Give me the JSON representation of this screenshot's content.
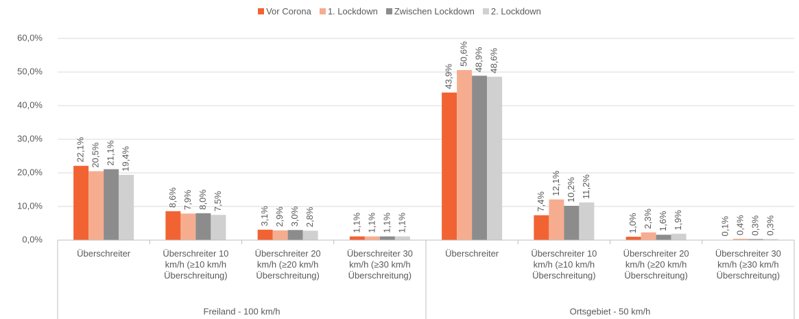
{
  "chart_data": {
    "type": "bar",
    "categories": [
      "Überschreiter",
      "Überschreiter 10 km/h (≥10 km/h Überschreitung)",
      "Überschreiter 20 km/h (≥20 km/h Überschreitung)",
      "Überschreiter 30 km/h (≥30 km/h Überschreitung)",
      "Überschreiter",
      "Überschreiter 10 km/h (≥10 km/h Überschreitung)",
      "Überschreiter 20 km/h (≥20 km/h Überschreitung)",
      "Überschreiter 30 km/h (≥30 km/h Überschreitung)"
    ],
    "category_groups": [
      "Freiland - 100 km/h",
      "Ortsgebiet - 50 km/h"
    ],
    "series": [
      {
        "name": "Vor Corona",
        "color": "#f26334",
        "values": [
          22.1,
          8.6,
          3.1,
          1.1,
          43.9,
          7.4,
          1.0,
          0.1
        ],
        "value_labels": [
          "22,1%",
          "8,6%",
          "3,1%",
          "1,1%",
          "43,9%",
          "7,4%",
          "1,0%",
          "0,1%"
        ]
      },
      {
        "name": "1. Lockdown",
        "color": "#f6ad8f",
        "values": [
          20.5,
          7.9,
          2.9,
          1.1,
          50.6,
          12.1,
          2.3,
          0.4
        ],
        "value_labels": [
          "20,5%",
          "7,9%",
          "2,9%",
          "1,1%",
          "50,6%",
          "12,1%",
          "2,3%",
          "0,4%"
        ]
      },
      {
        "name": "Zwischen Lockdown",
        "color": "#8c8c8c",
        "values": [
          21.1,
          8.0,
          3.0,
          1.1,
          48.9,
          10.2,
          1.6,
          0.3
        ],
        "value_labels": [
          "21,1%",
          "8,0%",
          "3,0%",
          "1,1%",
          "48,9%",
          "10,2%",
          "1,6%",
          "0,3%"
        ]
      },
      {
        "name": "2. Lockdown",
        "color": "#d0d0d0",
        "values": [
          19.4,
          7.5,
          2.8,
          1.1,
          48.6,
          11.2,
          1.9,
          0.3
        ],
        "value_labels": [
          "19,4%",
          "7,5%",
          "2,8%",
          "1,1%",
          "48,6%",
          "11,2%",
          "1,9%",
          "0,3%"
        ]
      }
    ],
    "ylim": [
      0,
      60
    ],
    "yticks": [
      {
        "value": 0,
        "label": "0,0%"
      },
      {
        "value": 10,
        "label": "10,0%"
      },
      {
        "value": 20,
        "label": "20,0%"
      },
      {
        "value": 30,
        "label": "30,0%"
      },
      {
        "value": 40,
        "label": "40,0%"
      },
      {
        "value": 50,
        "label": "50,0%"
      },
      {
        "value": 60,
        "label": "60,0%"
      }
    ],
    "grid": true,
    "legend": "top"
  }
}
